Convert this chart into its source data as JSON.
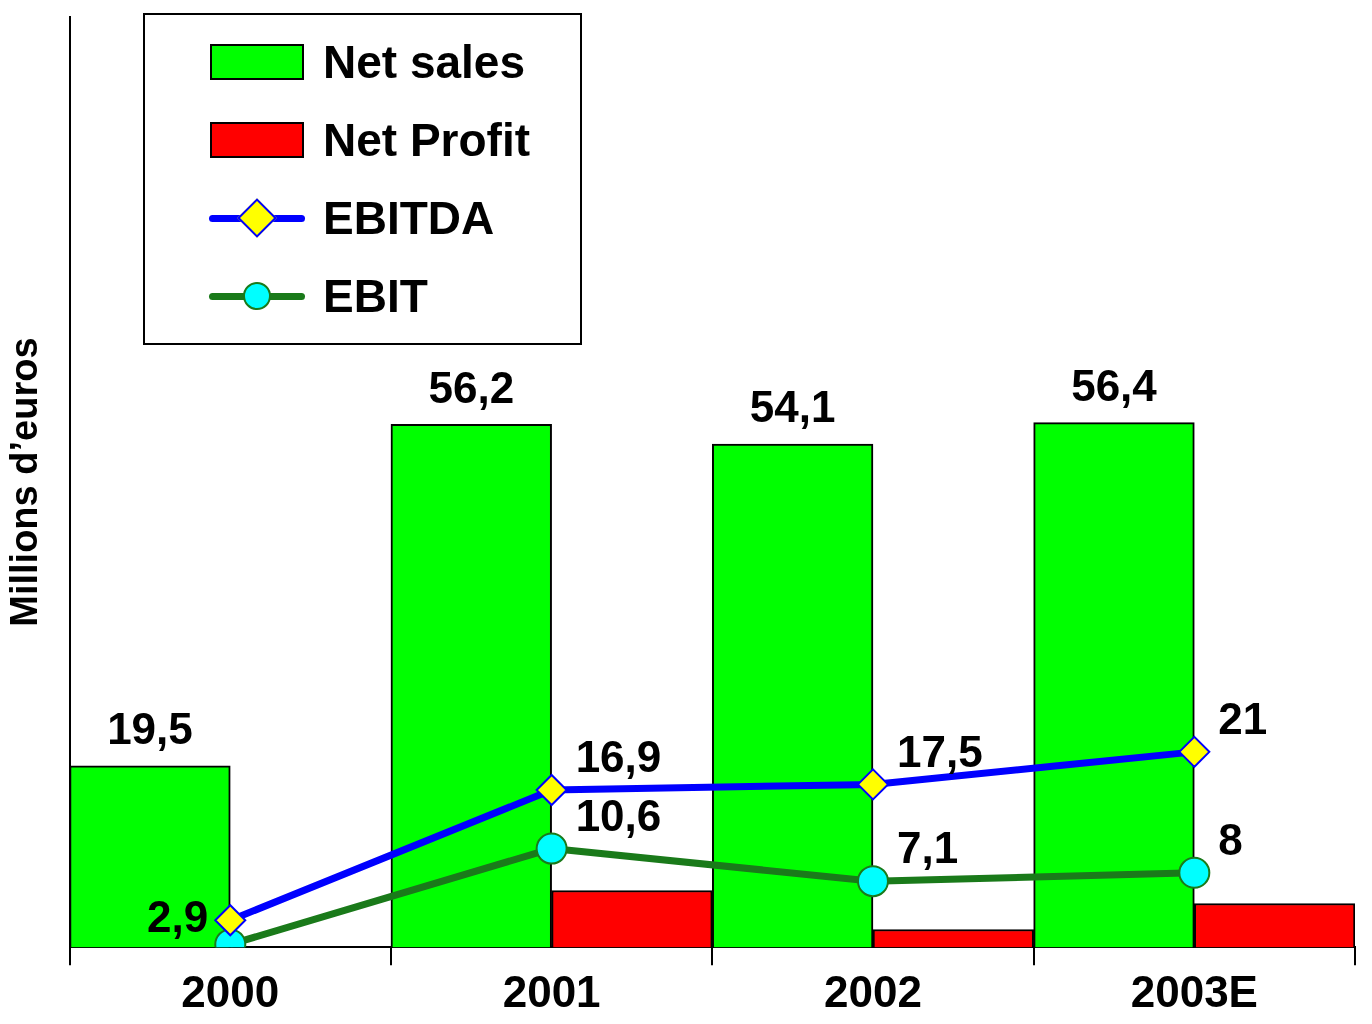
{
  "chart_data": {
    "type": "bar",
    "ylabel": "Millions d’euros",
    "categories": [
      "2000",
      "2001",
      "2002",
      "2003E"
    ],
    "ylim": [
      0,
      100
    ],
    "tick_labels": "x",
    "legend": "top left",
    "series": [
      {
        "name": "Net sales",
        "color": "#00ff00",
        "values": [
          19.5,
          56.2,
          54.1,
          56.4
        ],
        "value_labels": [
          "19,5",
          "56,2",
          "54,1",
          "56,4"
        ]
      },
      {
        "name": "Net Profit",
        "color": "#ff0000",
        "values": [
          null,
          6.1,
          1.9,
          4.7
        ]
      },
      {
        "name": "EBITDA",
        "type": "line",
        "color": "#0000ff",
        "marker": "diamond",
        "values": [
          2.9,
          16.9,
          17.5,
          21
        ],
        "value_labels": [
          "2,9",
          "16,9",
          "17,5",
          "21"
        ]
      },
      {
        "name": "EBIT",
        "type": "line",
        "color": "#1a7a1a",
        "marker": "circle",
        "values": [
          0.3,
          10.6,
          7.1,
          8
        ],
        "value_labels": [
          null,
          "10,6",
          "7,1",
          "8"
        ]
      }
    ]
  }
}
